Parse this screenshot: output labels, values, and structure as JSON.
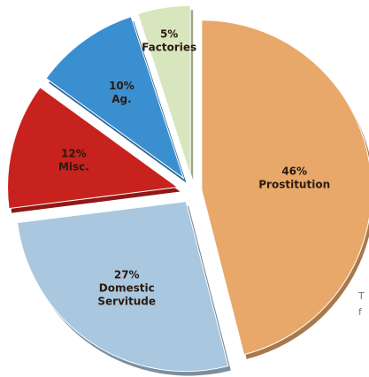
{
  "chart_data": {
    "type": "pie",
    "title": "",
    "slices": [
      {
        "label": "Prostitution",
        "value": 46,
        "value_label": "46%",
        "color": "#e8a869"
      },
      {
        "label": "Domestic Servitude",
        "value": 27,
        "value_label": "27%",
        "color": "#a9c7de"
      },
      {
        "label": "Misc.",
        "value": 12,
        "value_label": "12%",
        "color": "#c8221e"
      },
      {
        "label": "Ag.",
        "value": 10,
        "value_label": "10%",
        "color": "#3a8fd1"
      },
      {
        "label": "Factories",
        "value": 5,
        "value_label": "5%",
        "color": "#d8e6be"
      }
    ],
    "legend": "none",
    "exploded": true
  },
  "edge_text": [
    "T",
    "f"
  ]
}
